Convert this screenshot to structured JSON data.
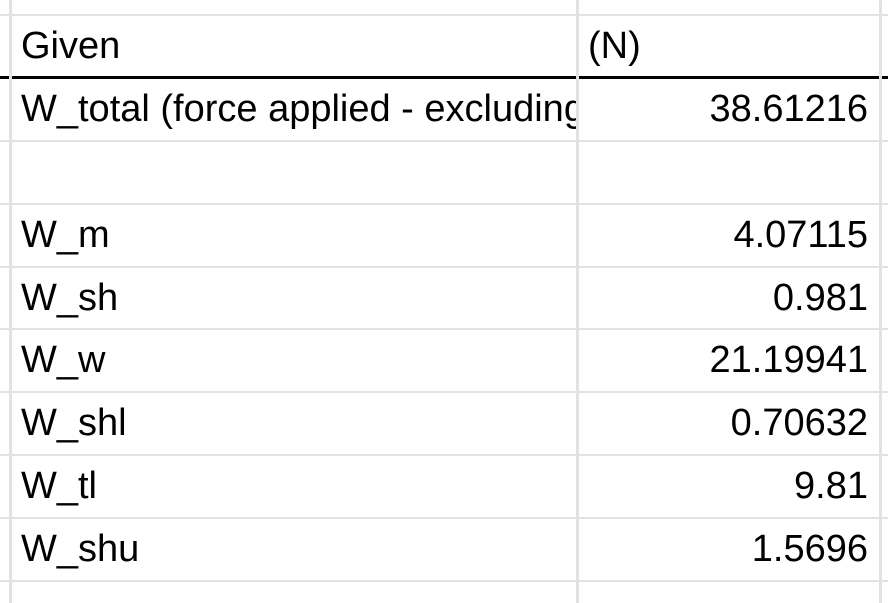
{
  "sheet": {
    "header": {
      "label": "Given",
      "unit": "(N)"
    },
    "rows": [
      {
        "label": "W_total (force applied - excluding",
        "value": "38.61216"
      },
      {
        "label": "",
        "value": ""
      },
      {
        "label": "W_m",
        "value": "4.07115"
      },
      {
        "label": "W_sh",
        "value": "0.981"
      },
      {
        "label": "W_w",
        "value": "21.19941"
      },
      {
        "label": "W_shl",
        "value": "0.70632"
      },
      {
        "label": "W_tl",
        "value": "9.81"
      },
      {
        "label": "W_shu",
        "value": "1.5696"
      }
    ]
  },
  "colors": {
    "gridline": "#e2e2e2",
    "header_border": "#000000",
    "text": "#000000"
  }
}
